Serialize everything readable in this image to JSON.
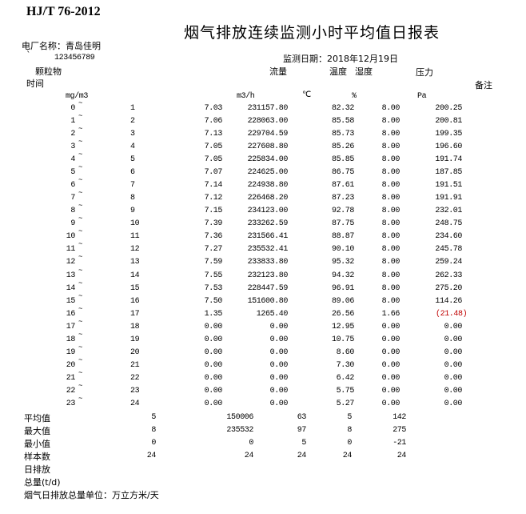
{
  "header": {
    "standard": "HJ/T 76-2012",
    "title": "烟气排放连续监测小时平均值日报表",
    "plant_label": "电厂名称：青岛佳明",
    "tick_mark": "`",
    "plant_code": "123456789",
    "date_label": "监测日期：2018年12月19日"
  },
  "columns": {
    "dust": "颗粒物",
    "flow": "流量",
    "temp": "温度",
    "humidity": "湿度",
    "pressure": "压力",
    "time": "时间",
    "remark": "备注",
    "dust_unit": "mg/m3",
    "flow_unit": "m3/h",
    "temp_unit": "℃",
    "humidity_unit": "%",
    "pressure_unit": "Pa"
  },
  "tilde": "~",
  "rows": [
    {
      "start": "0",
      "end": "1",
      "dust": "7.03",
      "flow": "231157.80",
      "temp": "82.32",
      "humidity": "8.00",
      "pressure": "200.25"
    },
    {
      "start": "1",
      "end": "2",
      "dust": "7.06",
      "flow": "228063.00",
      "temp": "85.58",
      "humidity": "8.00",
      "pressure": "200.81"
    },
    {
      "start": "2",
      "end": "3",
      "dust": "7.13",
      "flow": "229704.59",
      "temp": "85.73",
      "humidity": "8.00",
      "pressure": "199.35"
    },
    {
      "start": "3",
      "end": "4",
      "dust": "7.05",
      "flow": "227608.80",
      "temp": "85.26",
      "humidity": "8.00",
      "pressure": "196.60"
    },
    {
      "start": "4",
      "end": "5",
      "dust": "7.05",
      "flow": "225834.00",
      "temp": "85.85",
      "humidity": "8.00",
      "pressure": "191.74"
    },
    {
      "start": "5",
      "end": "6",
      "dust": "7.07",
      "flow": "224625.00",
      "temp": "86.75",
      "humidity": "8.00",
      "pressure": "187.85"
    },
    {
      "start": "6",
      "end": "7",
      "dust": "7.14",
      "flow": "224938.80",
      "temp": "87.61",
      "humidity": "8.00",
      "pressure": "191.51"
    },
    {
      "start": "7",
      "end": "8",
      "dust": "7.12",
      "flow": "226468.20",
      "temp": "87.23",
      "humidity": "8.00",
      "pressure": "191.91"
    },
    {
      "start": "8",
      "end": "9",
      "dust": "7.15",
      "flow": "234123.00",
      "temp": "92.78",
      "humidity": "8.00",
      "pressure": "232.01"
    },
    {
      "start": "9",
      "end": "10",
      "dust": "7.39",
      "flow": "233262.59",
      "temp": "87.75",
      "humidity": "8.00",
      "pressure": "248.75"
    },
    {
      "start": "10",
      "end": "11",
      "dust": "7.36",
      "flow": "231566.41",
      "temp": "88.87",
      "humidity": "8.00",
      "pressure": "234.60"
    },
    {
      "start": "11",
      "end": "12",
      "dust": "7.27",
      "flow": "235532.41",
      "temp": "90.10",
      "humidity": "8.00",
      "pressure": "245.78"
    },
    {
      "start": "12",
      "end": "13",
      "dust": "7.59",
      "flow": "233833.80",
      "temp": "95.32",
      "humidity": "8.00",
      "pressure": "259.24"
    },
    {
      "start": "13",
      "end": "14",
      "dust": "7.55",
      "flow": "232123.80",
      "temp": "94.32",
      "humidity": "8.00",
      "pressure": "262.33"
    },
    {
      "start": "14",
      "end": "15",
      "dust": "7.53",
      "flow": "228447.59",
      "temp": "96.91",
      "humidity": "8.00",
      "pressure": "275.20"
    },
    {
      "start": "15",
      "end": "16",
      "dust": "7.50",
      "flow": "151600.80",
      "temp": "89.06",
      "humidity": "8.00",
      "pressure": "114.26"
    },
    {
      "start": "16",
      "end": "17",
      "dust": "1.35",
      "flow": "1265.40",
      "temp": "26.56",
      "humidity": "1.66",
      "pressure": "(21.48)",
      "pressure_negative": true
    },
    {
      "start": "17",
      "end": "18",
      "dust": "0.00",
      "flow": "0.00",
      "temp": "12.95",
      "humidity": "0.00",
      "pressure": "0.00"
    },
    {
      "start": "18",
      "end": "19",
      "dust": "0.00",
      "flow": "0.00",
      "temp": "10.75",
      "humidity": "0.00",
      "pressure": "0.00"
    },
    {
      "start": "19",
      "end": "20",
      "dust": "0.00",
      "flow": "0.00",
      "temp": "8.60",
      "humidity": "0.00",
      "pressure": "0.00"
    },
    {
      "start": "20",
      "end": "21",
      "dust": "0.00",
      "flow": "0.00",
      "temp": "7.30",
      "humidity": "0.00",
      "pressure": "0.00"
    },
    {
      "start": "21",
      "end": "22",
      "dust": "0.00",
      "flow": "0.00",
      "temp": "6.42",
      "humidity": "0.00",
      "pressure": "0.00"
    },
    {
      "start": "22",
      "end": "23",
      "dust": "0.00",
      "flow": "0.00",
      "temp": "5.75",
      "humidity": "0.00",
      "pressure": "0.00"
    },
    {
      "start": "23",
      "end": "24",
      "dust": "0.00",
      "flow": "0.00",
      "temp": "5.27",
      "humidity": "0.00",
      "pressure": "0.00"
    }
  ],
  "summary": [
    {
      "label": "平均值",
      "dust": "5",
      "flow": "150006",
      "temp": "63",
      "humidity": "5",
      "pressure": "142"
    },
    {
      "label": "最大值",
      "dust": "8",
      "flow": "235532",
      "temp": "97",
      "humidity": "8",
      "pressure": "275"
    },
    {
      "label": "最小值",
      "dust": "0",
      "flow": "0",
      "temp": "5",
      "humidity": "0",
      "pressure": "-21"
    },
    {
      "label": "样本数",
      "dust": "24",
      "flow": "24",
      "temp": "24",
      "humidity": "24",
      "pressure": "24"
    }
  ],
  "footer": {
    "daily_emission": "日排放",
    "total": "总量(t/d)",
    "unit_note": "烟气日排放总量单位：万立方米/天"
  },
  "colors": {
    "negative": "#c00000"
  }
}
